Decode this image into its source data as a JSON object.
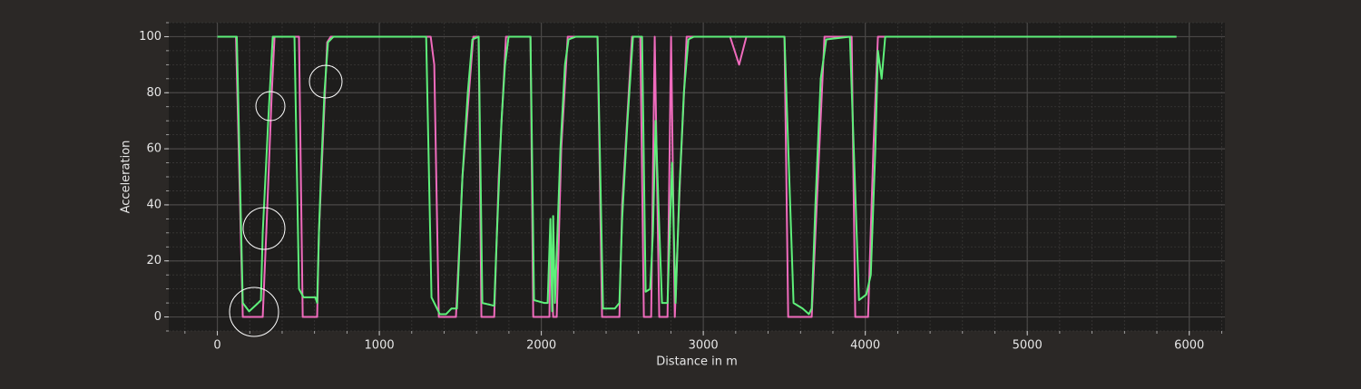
{
  "chart_data": {
    "type": "line",
    "xlabel": "Distance in m",
    "ylabel": "Acceleration",
    "xlim": [
      -300,
      6220
    ],
    "ylim": [
      -5,
      105
    ],
    "xticks": [
      0,
      1000,
      2000,
      3000,
      4000,
      5000,
      6000
    ],
    "yticks": [
      0,
      20,
      40,
      60,
      80,
      100
    ],
    "x_minor_ticks": [
      -200,
      0,
      200,
      400,
      600,
      800,
      1000,
      1200,
      1400,
      1600,
      1800,
      2000,
      2200,
      2400,
      2600,
      2800,
      3000,
      3200,
      3400,
      3600,
      3800,
      4000,
      4200,
      4400,
      4600,
      4800,
      5000,
      5200,
      5400,
      5600,
      5800,
      6000,
      6200
    ],
    "y_minor_ticks": [
      -5,
      0,
      5,
      10,
      15,
      20,
      25,
      30,
      35,
      40,
      45,
      50,
      55,
      60,
      65,
      70,
      75,
      80,
      85,
      90,
      95,
      100,
      105
    ],
    "grid": true,
    "series": [
      {
        "color": "#f06bbd",
        "x": [
          0,
          115,
          140,
          157,
          280,
          302,
          336,
          353,
          504,
          527,
          616,
          627,
          678,
          700,
          1317,
          1339,
          1367,
          1473,
          1513,
          1580,
          1613,
          1630,
          1709,
          1737,
          1782,
          1933,
          1950,
          2050,
          2056,
          2073,
          2095,
          2123,
          2163,
          2347,
          2375,
          2482,
          2499,
          2560,
          2611,
          2633,
          2678,
          2700,
          2728,
          2779,
          2801,
          2824,
          2857,
          2897,
          3165,
          3221,
          3266,
          3501,
          3524,
          3669,
          3708,
          3748,
          3916,
          3938,
          4017,
          4050,
          4078,
          5921
        ],
        "values": [
          100,
          100,
          40,
          0,
          0,
          30,
          80,
          100,
          100,
          0,
          0,
          30,
          98,
          100,
          100,
          90,
          0,
          0,
          50,
          100,
          100,
          0,
          0,
          50,
          100,
          100,
          0,
          0,
          30,
          0,
          0,
          60,
          100,
          100,
          0,
          0,
          40,
          100,
          100,
          0,
          0,
          100,
          0,
          0,
          100,
          0,
          50,
          100,
          100,
          90,
          100,
          100,
          0,
          0,
          50,
          100,
          100,
          0,
          0,
          60,
          100,
          100
        ]
      },
      {
        "color": "#5ef07a",
        "x": [
          0,
          120,
          157,
          196,
          252,
          269,
          280,
          314,
          342,
          476,
          504,
          532,
          605,
          616,
          627,
          639,
          661,
          683,
          717,
          1289,
          1322,
          1373,
          1412,
          1445,
          1479,
          1513,
          1546,
          1574,
          1613,
          1636,
          1709,
          1726,
          1754,
          1776,
          1798,
          1933,
          1955,
          2017,
          2039,
          2056,
          2067,
          2073,
          2084,
          2118,
          2146,
          2168,
          2213,
          2347,
          2381,
          2454,
          2482,
          2499,
          2532,
          2566,
          2622,
          2644,
          2672,
          2689,
          2706,
          2723,
          2745,
          2779,
          2807,
          2829,
          2852,
          2880,
          2908,
          2941,
          3501,
          3557,
          3613,
          3652,
          3669,
          3692,
          3725,
          3759,
          3905,
          3961,
          4006,
          4034,
          4062,
          4078,
          4101,
          4123,
          5921
        ],
        "values": [
          100,
          100,
          5,
          2,
          5,
          6,
          30,
          70,
          100,
          100,
          10,
          7,
          7,
          5,
          30,
          50,
          80,
          98,
          100,
          100,
          7,
          1,
          1,
          3,
          3,
          50,
          80,
          99,
          100,
          5,
          4,
          30,
          70,
          90,
          100,
          100,
          6,
          5,
          5,
          35,
          2,
          36,
          5,
          60,
          90,
          99,
          100,
          100,
          3,
          3,
          5,
          35,
          70,
          100,
          100,
          9,
          10,
          30,
          70,
          40,
          5,
          5,
          55,
          5,
          45,
          80,
          99,
          100,
          100,
          5,
          3,
          1,
          3,
          40,
          85,
          99,
          100,
          6,
          8,
          15,
          60,
          95,
          85,
          100,
          100
        ]
      }
    ]
  }
}
